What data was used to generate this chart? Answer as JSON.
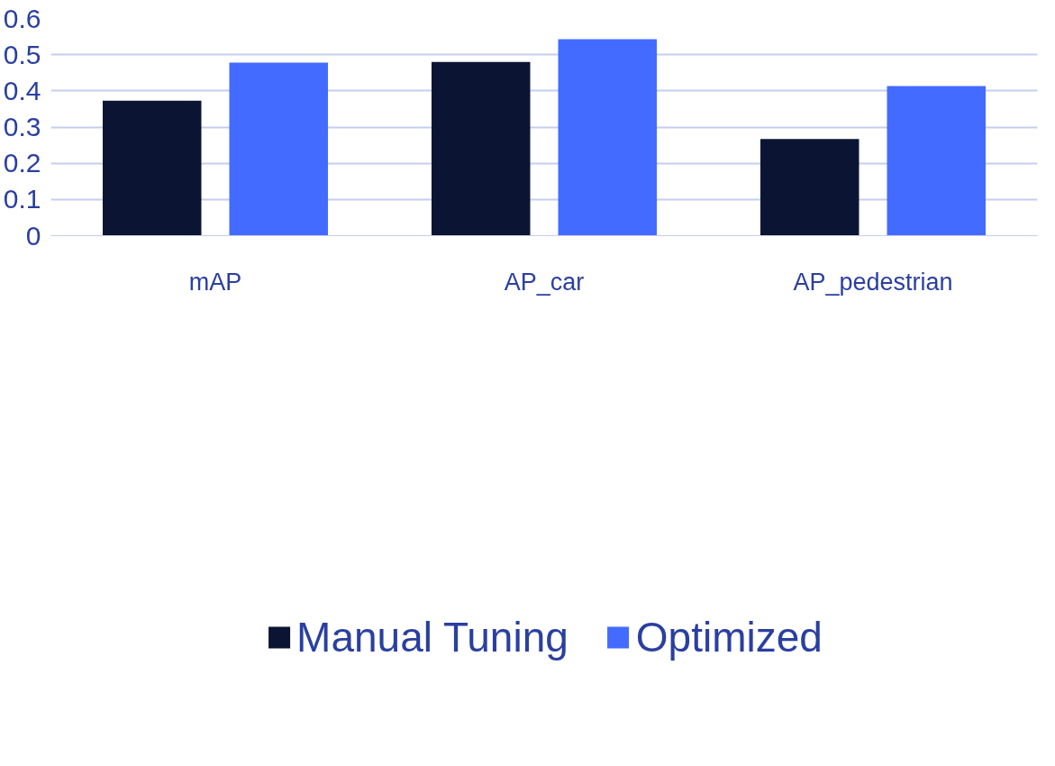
{
  "chart_data": {
    "type": "bar",
    "categories": [
      "mAP",
      "AP_car",
      "AP_pedestrian"
    ],
    "series": [
      {
        "name": "Manual Tuning",
        "color": "#0b1533",
        "values": [
          0.373,
          0.48,
          0.267
        ]
      },
      {
        "name": "Optimized",
        "color": "#436bff",
        "values": [
          0.478,
          0.543,
          0.413
        ]
      }
    ],
    "ylim": [
      0,
      0.6
    ],
    "yticks": [
      0,
      0.1,
      0.2,
      0.3,
      0.4,
      0.5,
      0.6
    ],
    "grid": "y",
    "legend": "bottom"
  }
}
